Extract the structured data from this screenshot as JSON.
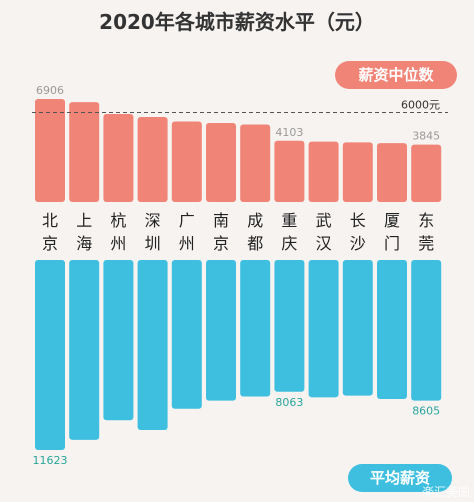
{
  "chart_data": {
    "type": "bar",
    "title": "2020年各城市薪资水平（元）",
    "cities": [
      {
        "chars": [
          "北",
          "京"
        ]
      },
      {
        "chars": [
          "上",
          "海"
        ]
      },
      {
        "chars": [
          "杭",
          "州"
        ]
      },
      {
        "chars": [
          "深",
          "圳"
        ]
      },
      {
        "chars": [
          "广",
          "州"
        ]
      },
      {
        "chars": [
          "南",
          "京"
        ]
      },
      {
        "chars": [
          "成",
          "都"
        ]
      },
      {
        "chars": [
          "重",
          "庆"
        ]
      },
      {
        "chars": [
          "武",
          "汉"
        ]
      },
      {
        "chars": [
          "长",
          "沙"
        ]
      },
      {
        "chars": [
          "厦",
          "门"
        ]
      },
      {
        "chars": [
          "东",
          "莞"
        ]
      }
    ],
    "series": [
      {
        "name": "薪资中位数",
        "values": [
          6906,
          6700,
          5900,
          5700,
          5400,
          5300,
          5200,
          4103,
          4050,
          4000,
          3950,
          3845
        ],
        "labels": [
          "6906",
          "",
          "",
          "",
          "",
          "",
          "",
          "4103",
          "",
          "",
          "",
          "3845"
        ],
        "color": "#f08577"
      },
      {
        "name": "平均薪资",
        "values": [
          11623,
          11000,
          9800,
          10400,
          9100,
          8600,
          8350,
          8063,
          8400,
          8300,
          8500,
          8605
        ],
        "labels": [
          "11623",
          "",
          "",
          "",
          "",
          "",
          "",
          "8063",
          "",
          "",
          "",
          "8605"
        ],
        "color": "#3fbfe0"
      }
    ],
    "reference_line": {
      "value": 6000,
      "label": "6000元"
    },
    "ylim_median": [
      0,
      7000
    ],
    "ylim_average": [
      0,
      12000
    ]
  },
  "watermark": "楽汇美国"
}
